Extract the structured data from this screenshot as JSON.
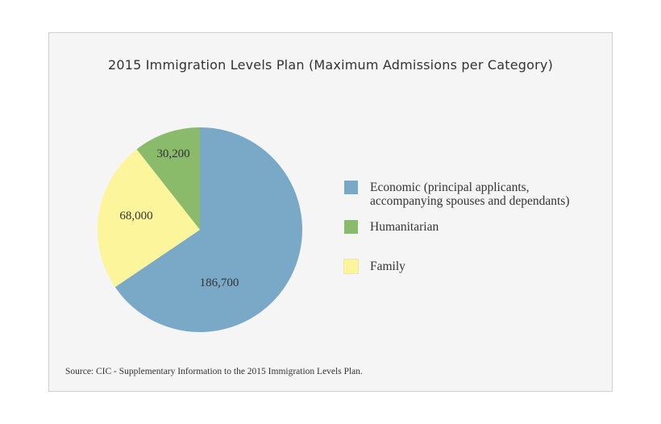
{
  "chart_data": {
    "type": "pie",
    "title": "2015 Immigration Levels Plan (Maximum Admissions per Category)",
    "slices": [
      {
        "name": "Economic (principal applicants, accompanying spouses and dependants)",
        "value": 186700,
        "label": "186,700",
        "color": "#7aa9c8"
      },
      {
        "name": "Family",
        "value": 68000,
        "label": "68,000",
        "color": "#fdf59b"
      },
      {
        "name": "Humanitarian",
        "value": 30200,
        "label": "30,200",
        "color": "#89bb6b"
      }
    ],
    "start_angle": "12 o'clock",
    "direction": "clockwise",
    "legend": {
      "placement": "right",
      "items": [
        {
          "label_line1": "Economic (principal applicants,",
          "label_line2": "accompanying spouses and dependants)",
          "color": "#7aa9c8"
        },
        {
          "label_line1": "Humanitarian",
          "color": "#89bb6b"
        },
        {
          "label_line1": "Family",
          "color": "#fdf59b"
        }
      ]
    },
    "source": "Source: CIC - Supplementary Information to the 2015 Immigration Levels Plan."
  }
}
